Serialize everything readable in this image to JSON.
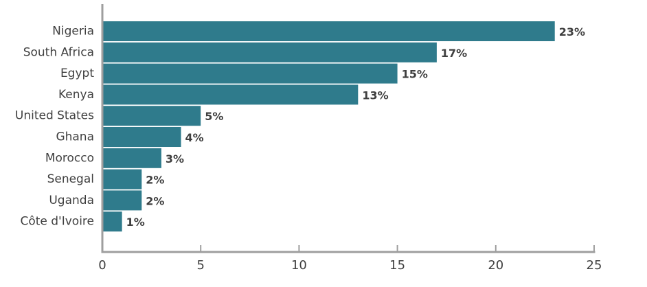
{
  "chart_data": {
    "type": "bar",
    "orientation": "horizontal",
    "categories": [
      "Nigeria",
      "South Africa",
      "Egypt",
      "Kenya",
      "United States",
      "Ghana",
      "Morocco",
      "Senegal",
      "Uganda",
      "Côte d'Ivoire"
    ],
    "values": [
      23,
      17,
      15,
      13,
      5,
      4,
      3,
      2,
      2,
      1
    ],
    "value_labels": [
      "23%",
      "17%",
      "15%",
      "13%",
      "5%",
      "4%",
      "3%",
      "2%",
      "2%",
      "1%"
    ],
    "title": "",
    "xlabel": "",
    "ylabel": "",
    "xlim": [
      0,
      25
    ],
    "xticks": [
      0,
      5,
      10,
      15,
      20,
      25
    ],
    "xtick_labels": [
      "0",
      "5",
      "10",
      "15",
      "20",
      "25"
    ],
    "grid": false,
    "legend": "none",
    "colors": {
      "bar": "#2f7b8c",
      "axis": "#9e9e9e",
      "text": "#3f3f3f"
    }
  }
}
